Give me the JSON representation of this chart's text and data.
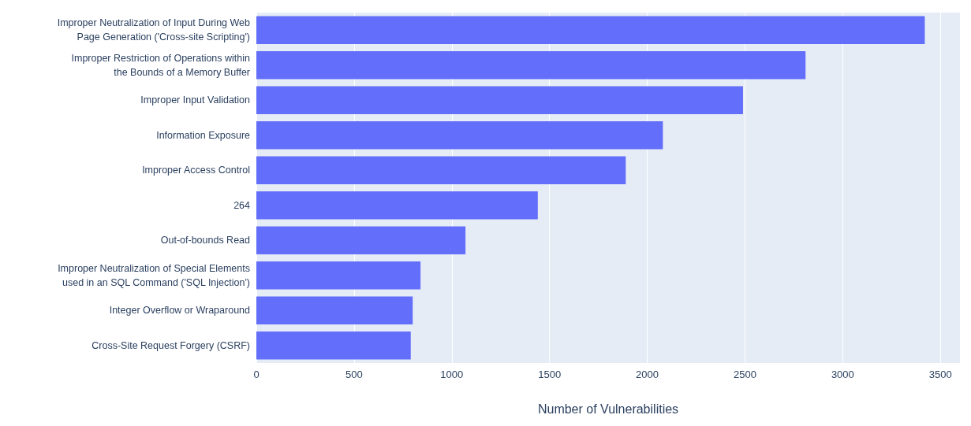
{
  "chart_data": {
    "type": "bar",
    "orientation": "horizontal",
    "xlabel": "Number of Vulnerabilities",
    "categories": [
      "Improper Neutralization of Input During Web\nPage Generation ('Cross-site Scripting')",
      "Improper Restriction of Operations within\nthe Bounds of a Memory Buffer",
      "Improper Input Validation",
      "Information Exposure",
      "Improper Access Control",
      "264",
      "Out-of-bounds Read",
      "Improper Neutralization of Special Elements\nused in an SQL Command ('SQL Injection')",
      "Integer Overflow or Wraparound",
      "Cross-Site Request Forgery (CSRF)"
    ],
    "values": [
      3420,
      2810,
      2490,
      2080,
      1890,
      1440,
      1070,
      840,
      800,
      790
    ],
    "color": "#636efa",
    "xlim": [
      0,
      3600
    ],
    "xticks": [
      0,
      500,
      1000,
      1500,
      2000,
      2500,
      3000,
      3500
    ],
    "grid": "x"
  }
}
